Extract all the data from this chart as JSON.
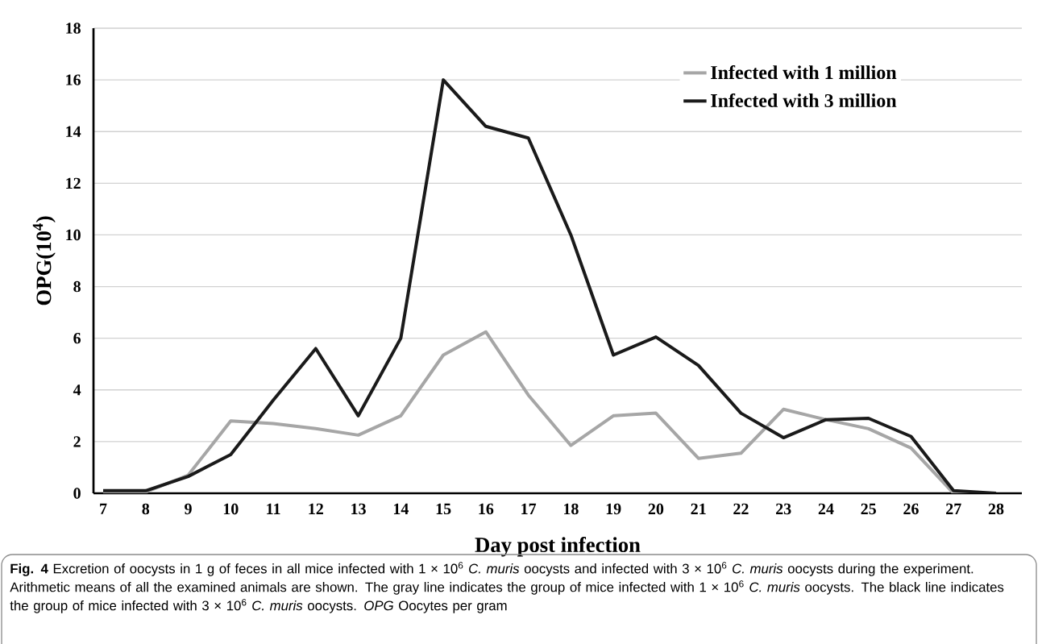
{
  "chart_data": {
    "type": "line",
    "categories": [
      "7",
      "8",
      "9",
      "10",
      "11",
      "12",
      "13",
      "14",
      "15",
      "16",
      "17",
      "18",
      "19",
      "20",
      "21",
      "22",
      "23",
      "24",
      "25",
      "26",
      "27",
      "28"
    ],
    "series": [
      {
        "name": "Infected with 1 million",
        "color": "#a6a6a6",
        "values": [
          0,
          0.05,
          0.7,
          2.8,
          2.7,
          2.5,
          2.25,
          3.0,
          5.35,
          6.25,
          3.8,
          1.85,
          3.0,
          3.1,
          1.35,
          1.55,
          3.25,
          2.85,
          2.5,
          1.75,
          0,
          0
        ]
      },
      {
        "name": "Infected with 3 million",
        "color": "#1a1a1a",
        "values": [
          0.1,
          0.1,
          0.65,
          1.5,
          3.6,
          5.6,
          3.0,
          6.0,
          16.0,
          14.2,
          13.75,
          10.0,
          5.35,
          6.05,
          4.95,
          3.1,
          2.15,
          2.85,
          2.9,
          2.2,
          0.1,
          0
        ]
      }
    ],
    "xlabel": "Day post infection",
    "ylabel": "OPG(10$^{4}$)",
    "ylim": [
      0,
      18
    ],
    "yticks": [
      0,
      2,
      4,
      6,
      8,
      10,
      12,
      14,
      16,
      18
    ],
    "grid": "y",
    "legend": "top right",
    "annotations": [
      "**Fig. 4**  Excretion of oocysts in 1 g of feces in all mice infected with 1 × 10$^{6}$ *C. muris* oocysts and infected with 3 × 10$^{6}$ *C. muris* oocysts during the experiment. Arithmetic means of all the examined animals are shown. The gray line indicates the group of mice infected with 1 × 10$^{6}$ *C. muris* oocysts. The black line indicates the group of mice infected with 3 × 10$^{6}$ *C. muris* oocysts. *OPG* Oocytes per gram"
    ]
  }
}
